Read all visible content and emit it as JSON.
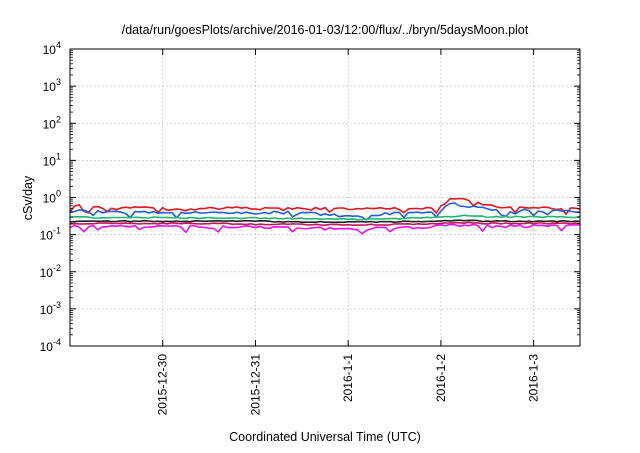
{
  "chart_data": {
    "type": "line",
    "title": "/data/run/goesPlots/archive/2016-01-03/12:00/flux/../bryn/5daysMoon.plot",
    "xlabel": "Coordinated Universal Time (UTC)",
    "ylabel": "cSv/day",
    "y_scale": "log",
    "ylim": [
      0.0001,
      10000
    ],
    "xlim": [
      "2015-12-29",
      "2016-01-03T12:00"
    ],
    "x_ticks": [
      "2015-12-30",
      "2015-12-31",
      "2016-1-1",
      "2016-1-2",
      "2016-1-3"
    ],
    "y_ticks": [
      {
        "base": "10",
        "exp": "-4"
      },
      {
        "base": "10",
        "exp": "-3"
      },
      {
        "base": "10",
        "exp": "-2"
      },
      {
        "base": "10",
        "exp": "-1"
      },
      {
        "base": "10",
        "exp": "0"
      },
      {
        "base": "10",
        "exp": "1"
      },
      {
        "base": "10",
        "exp": "2"
      },
      {
        "base": "10",
        "exp": "3"
      },
      {
        "base": "10",
        "exp": "4"
      }
    ],
    "grid": true,
    "series": [
      {
        "color": "#e8141c",
        "x": [
          "2015-12-29T00:00",
          "2015-12-29T06:00",
          "2015-12-29T12:00",
          "2015-12-29T18:00",
          "2015-12-30T00:00",
          "2015-12-30T06:00",
          "2015-12-30T12:00",
          "2015-12-30T18:00",
          "2015-12-31T00:00",
          "2015-12-31T06:00",
          "2015-12-31T12:00",
          "2015-12-31T18:00",
          "2016-01-01T00:00",
          "2016-01-01T06:00",
          "2016-01-01T12:00",
          "2016-01-01T18:00",
          "2016-01-02T00:00",
          "2016-01-02T03:00",
          "2016-01-02T06:00",
          "2016-01-02T09:00",
          "2016-01-02T12:00",
          "2016-01-02T18:00",
          "2016-01-03T00:00",
          "2016-01-03T06:00",
          "2016-01-03T12:00"
        ],
        "values": [
          0.6,
          0.55,
          0.5,
          0.52,
          0.5,
          0.48,
          0.5,
          0.52,
          0.5,
          0.48,
          0.5,
          0.5,
          0.48,
          0.5,
          0.5,
          0.5,
          0.55,
          0.95,
          0.85,
          0.75,
          0.6,
          0.55,
          0.55,
          0.52,
          0.5
        ]
      },
      {
        "color": "#1f5fe0",
        "x": [
          "2015-12-29T00:00",
          "2015-12-29T06:00",
          "2015-12-29T12:00",
          "2015-12-29T18:00",
          "2015-12-30T00:00",
          "2015-12-30T06:00",
          "2015-12-30T12:00",
          "2015-12-30T18:00",
          "2015-12-31T00:00",
          "2015-12-31T06:00",
          "2015-12-31T12:00",
          "2015-12-31T18:00",
          "2016-01-01T00:00",
          "2016-01-01T06:00",
          "2016-01-01T12:00",
          "2016-01-01T18:00",
          "2016-01-02T00:00",
          "2016-01-02T03:00",
          "2016-01-02T06:00",
          "2016-01-02T09:00",
          "2016-01-02T12:00",
          "2016-01-02T18:00",
          "2016-01-03T00:00",
          "2016-01-03T06:00",
          "2016-01-03T12:00"
        ],
        "values": [
          0.45,
          0.42,
          0.4,
          0.42,
          0.4,
          0.38,
          0.42,
          0.4,
          0.38,
          0.4,
          0.38,
          0.35,
          0.3,
          0.33,
          0.38,
          0.4,
          0.42,
          0.7,
          0.6,
          0.55,
          0.48,
          0.45,
          0.45,
          0.43,
          0.42
        ]
      },
      {
        "color": "#22b573",
        "x": [
          "2015-12-29T00:00",
          "2015-12-29T12:00",
          "2015-12-30T00:00",
          "2015-12-30T12:00",
          "2015-12-31T00:00",
          "2015-12-31T12:00",
          "2016-01-01T00:00",
          "2016-01-01T12:00",
          "2016-01-02T00:00",
          "2016-01-02T06:00",
          "2016-01-02T12:00",
          "2016-01-03T00:00",
          "2016-01-03T12:00"
        ],
        "values": [
          0.3,
          0.28,
          0.29,
          0.28,
          0.28,
          0.27,
          0.26,
          0.27,
          0.29,
          0.33,
          0.3,
          0.3,
          0.3
        ]
      },
      {
        "color": "#222222",
        "x": [
          "2015-12-29T00:00",
          "2015-12-29T12:00",
          "2015-12-30T00:00",
          "2015-12-30T12:00",
          "2015-12-31T00:00",
          "2015-12-31T12:00",
          "2016-01-01T00:00",
          "2016-01-01T12:00",
          "2016-01-02T00:00",
          "2016-01-02T06:00",
          "2016-01-02T12:00",
          "2016-01-03T00:00",
          "2016-01-03T12:00"
        ],
        "values": [
          0.23,
          0.23,
          0.23,
          0.23,
          0.23,
          0.22,
          0.22,
          0.22,
          0.23,
          0.24,
          0.23,
          0.23,
          0.23
        ]
      },
      {
        "color": "#c2185b",
        "x": [
          "2015-12-29T00:00",
          "2015-12-29T12:00",
          "2015-12-30T00:00",
          "2015-12-30T12:00",
          "2015-12-31T00:00",
          "2015-12-31T12:00",
          "2016-01-01T00:00",
          "2016-01-01T12:00",
          "2016-01-02T00:00",
          "2016-01-02T06:00",
          "2016-01-02T12:00",
          "2016-01-03T00:00",
          "2016-01-03T12:00"
        ],
        "values": [
          0.2,
          0.2,
          0.2,
          0.2,
          0.19,
          0.19,
          0.18,
          0.19,
          0.2,
          0.21,
          0.2,
          0.2,
          0.2
        ]
      },
      {
        "color": "#ee11ee",
        "x": [
          "2015-12-29T00:00",
          "2015-12-29T12:00",
          "2015-12-30T00:00",
          "2015-12-30T12:00",
          "2015-12-31T00:00",
          "2015-12-31T12:00",
          "2016-01-01T00:00",
          "2016-01-01T12:00",
          "2016-01-02T00:00",
          "2016-01-02T06:00",
          "2016-01-02T12:00",
          "2016-01-03T00:00",
          "2016-01-03T12:00"
        ],
        "values": [
          0.17,
          0.17,
          0.17,
          0.16,
          0.16,
          0.15,
          0.14,
          0.15,
          0.17,
          0.18,
          0.17,
          0.17,
          0.17
        ]
      }
    ]
  }
}
